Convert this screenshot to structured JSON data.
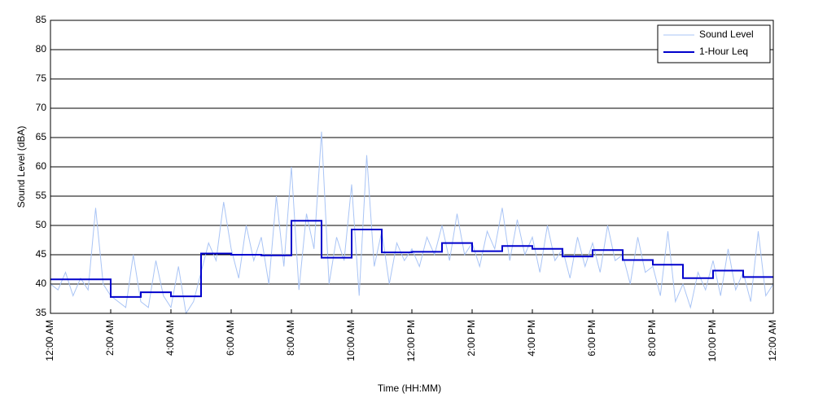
{
  "chart_data": {
    "type": "line",
    "xlabel": "Time (HH:MM)",
    "ylabel": "Sound Level (dBA)",
    "xlim": [
      0,
      24
    ],
    "ylim": [
      35,
      85
    ],
    "xticks": [
      {
        "value": 0,
        "label": "12:00 AM"
      },
      {
        "value": 2,
        "label": "2:00 AM"
      },
      {
        "value": 4,
        "label": "4:00 AM"
      },
      {
        "value": 6,
        "label": "6:00 AM"
      },
      {
        "value": 8,
        "label": "8:00 AM"
      },
      {
        "value": 10,
        "label": "10:00 AM"
      },
      {
        "value": 12,
        "label": "12:00 PM"
      },
      {
        "value": 14,
        "label": "2:00 PM"
      },
      {
        "value": 16,
        "label": "4:00 PM"
      },
      {
        "value": 18,
        "label": "6:00 PM"
      },
      {
        "value": 20,
        "label": "8:00 PM"
      },
      {
        "value": 22,
        "label": "10:00 PM"
      },
      {
        "value": 24,
        "label": "12:00 AM"
      }
    ],
    "yticks": [
      35,
      40,
      45,
      50,
      55,
      60,
      65,
      70,
      75,
      80,
      85
    ],
    "grid": true,
    "legend": "upper right",
    "series": [
      {
        "name": "Sound Level",
        "color": "#a9c4f5",
        "step": false,
        "x": [
          0,
          0.25,
          0.5,
          0.75,
          1,
          1.25,
          1.5,
          1.75,
          2,
          2.25,
          2.5,
          2.75,
          3,
          3.25,
          3.5,
          3.75,
          4,
          4.25,
          4.5,
          4.75,
          5,
          5.25,
          5.5,
          5.75,
          6,
          6.25,
          6.5,
          6.75,
          7,
          7.25,
          7.5,
          7.75,
          8,
          8.25,
          8.5,
          8.75,
          9,
          9.25,
          9.5,
          9.75,
          10,
          10.25,
          10.5,
          10.75,
          11,
          11.25,
          11.5,
          11.75,
          12,
          12.25,
          12.5,
          12.75,
          13,
          13.25,
          13.5,
          13.75,
          14,
          14.25,
          14.5,
          14.75,
          15,
          15.25,
          15.5,
          15.75,
          16,
          16.25,
          16.5,
          16.75,
          17,
          17.25,
          17.5,
          17.75,
          18,
          18.25,
          18.5,
          18.75,
          19,
          19.25,
          19.5,
          19.75,
          20,
          20.25,
          20.5,
          20.75,
          21,
          21.25,
          21.5,
          21.75,
          22,
          22.25,
          22.5,
          22.75,
          23,
          23.25,
          23.5,
          23.75,
          24
        ],
        "values": [
          40,
          39,
          42,
          38,
          41,
          39,
          53,
          40,
          38,
          37,
          36,
          45,
          37,
          36,
          44,
          38,
          36,
          43,
          35,
          37,
          42,
          47,
          44,
          54,
          46,
          41,
          50,
          44,
          48,
          40,
          55,
          43,
          60,
          39,
          52,
          46,
          66,
          40,
          48,
          44,
          57,
          38,
          62,
          43,
          49,
          40,
          47,
          44,
          46,
          43,
          48,
          45,
          50,
          44,
          52,
          45,
          47,
          43,
          49,
          46,
          53,
          44,
          51,
          45,
          48,
          42,
          50,
          44,
          46,
          41,
          48,
          43,
          47,
          42,
          50,
          44,
          45,
          40,
          48,
          42,
          43,
          38,
          49,
          37,
          40,
          36,
          42,
          39,
          44,
          38,
          46,
          39,
          42,
          37,
          49,
          38,
          40
        ]
      },
      {
        "name": "1-Hour Leq",
        "color": "#0000cc",
        "step": true,
        "x": [
          0,
          1,
          2,
          3,
          4,
          5,
          6,
          7,
          8,
          9,
          10,
          11,
          12,
          13,
          14,
          15,
          16,
          17,
          18,
          19,
          20,
          21,
          22,
          23
        ],
        "values": [
          40.8,
          40.8,
          37.8,
          38.6,
          37.9,
          45.2,
          45.0,
          44.9,
          50.8,
          44.5,
          49.3,
          45.4,
          45.5,
          47.0,
          45.6,
          46.5,
          46.0,
          44.7,
          45.8,
          44.1,
          43.3,
          41.0,
          42.3,
          41.2
        ]
      }
    ]
  }
}
